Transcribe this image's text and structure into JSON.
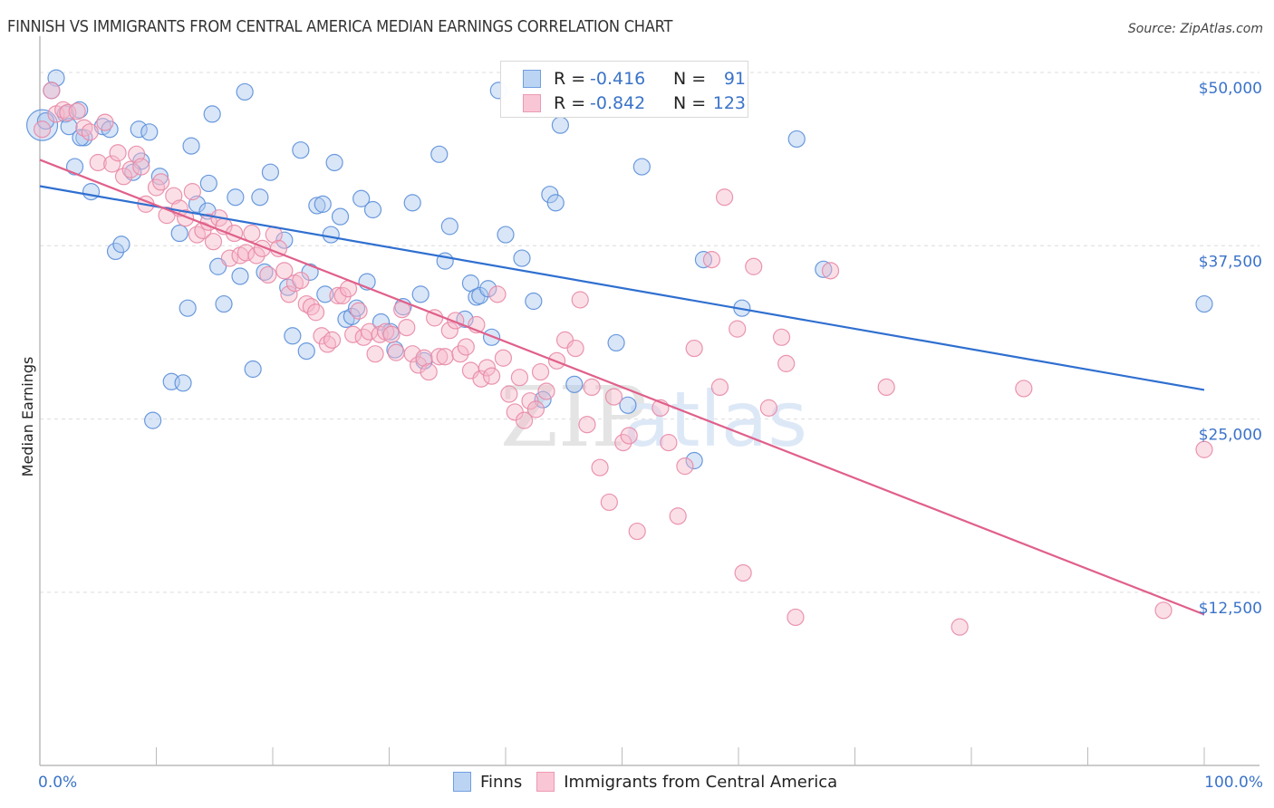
{
  "header": {
    "title": "FINNISH VS IMMIGRANTS FROM CENTRAL AMERICA MEDIAN EARNINGS CORRELATION CHART",
    "source": "Source: ZipAtlas.com"
  },
  "legend": {
    "rows": [
      {
        "r_label": "R =",
        "r_value": "-0.416",
        "n_label": "N =",
        "n_value": "91"
      },
      {
        "r_label": "R =",
        "r_value": "-0.842",
        "n_label": "N =",
        "n_value": "123"
      }
    ],
    "bottom": [
      "Finns",
      "Immigrants from Central America"
    ]
  },
  "watermark": {
    "zip": "ZIP",
    "atlas": "atlas"
  },
  "colors": {
    "finns_fill": "#aac8f0",
    "finns_stroke": "#5b8fd9",
    "finns_line": "#2f6fd0",
    "immig_fill": "#f7b8ca",
    "immig_stroke": "#e88aa6",
    "immig_line": "#e0608a",
    "axis_text": "#3b73c9"
  },
  "chart_data": {
    "type": "scatter",
    "title": "FINNISH VS IMMIGRANTS FROM CENTRAL AMERICA MEDIAN EARNINGS CORRELATION CHART",
    "xlabel": "",
    "ylabel": "Median Earnings",
    "xlim": [
      0,
      100
    ],
    "ylim": [
      0,
      51000
    ],
    "x_tick_labels": [
      "0.0%",
      "100.0%"
    ],
    "y_ticks": [
      12500,
      25000,
      37500,
      50000
    ],
    "y_tick_labels": [
      "$12,500",
      "$25,000",
      "$37,500",
      "$50,000"
    ],
    "grid": true,
    "legend_position": "top-center",
    "series": [
      {
        "name": "Finns",
        "r": -0.416,
        "n": 91,
        "trend": {
          "x": [
            0,
            100
          ],
          "y": [
            41800,
            27100
          ]
        },
        "points": [
          [
            0.2,
            46200
          ],
          [
            1.4,
            49600
          ],
          [
            1.0,
            48700
          ],
          [
            2.2,
            47000
          ],
          [
            2.5,
            46100
          ],
          [
            3.0,
            43200
          ],
          [
            3.8,
            45300
          ],
          [
            3.5,
            45300
          ],
          [
            4.4,
            41400
          ],
          [
            5.4,
            46100
          ],
          [
            6.0,
            45900
          ],
          [
            6.5,
            37100
          ],
          [
            7.0,
            37600
          ],
          [
            8.5,
            45900
          ],
          [
            8.7,
            43600
          ],
          [
            9.4,
            45700
          ],
          [
            9.7,
            24900
          ],
          [
            10.3,
            42500
          ],
          [
            11.3,
            27700
          ],
          [
            12.3,
            27600
          ],
          [
            12.0,
            38400
          ],
          [
            12.7,
            33000
          ],
          [
            13.0,
            44700
          ],
          [
            13.5,
            40500
          ],
          [
            14.4,
            40000
          ],
          [
            14.5,
            42000
          ],
          [
            14.8,
            47000
          ],
          [
            15.3,
            36000
          ],
          [
            15.8,
            33300
          ],
          [
            16.8,
            41000
          ],
          [
            17.2,
            35300
          ],
          [
            17.6,
            48600
          ],
          [
            18.3,
            28600
          ],
          [
            18.9,
            41000
          ],
          [
            19.3,
            35600
          ],
          [
            19.8,
            42800
          ],
          [
            21.0,
            37900
          ],
          [
            21.3,
            34500
          ],
          [
            21.7,
            31000
          ],
          [
            22.4,
            44400
          ],
          [
            22.9,
            29900
          ],
          [
            23.2,
            35600
          ],
          [
            23.8,
            40400
          ],
          [
            24.3,
            40500
          ],
          [
            24.5,
            34000
          ],
          [
            25.0,
            38300
          ],
          [
            25.3,
            43500
          ],
          [
            25.8,
            39600
          ],
          [
            26.3,
            32200
          ],
          [
            26.8,
            32400
          ],
          [
            27.2,
            33000
          ],
          [
            27.6,
            40900
          ],
          [
            28.1,
            34900
          ],
          [
            28.6,
            40100
          ],
          [
            29.3,
            32000
          ],
          [
            30.1,
            31300
          ],
          [
            30.5,
            30000
          ],
          [
            31.2,
            33100
          ],
          [
            32.0,
            40600
          ],
          [
            32.7,
            34000
          ],
          [
            33.0,
            29200
          ],
          [
            34.3,
            44100
          ],
          [
            34.8,
            36400
          ],
          [
            35.2,
            38900
          ],
          [
            36.5,
            32200
          ],
          [
            37.0,
            34800
          ],
          [
            37.5,
            33800
          ],
          [
            37.8,
            33900
          ],
          [
            38.5,
            34400
          ],
          [
            38.8,
            30900
          ],
          [
            39.4,
            48700
          ],
          [
            40.0,
            38300
          ],
          [
            41.4,
            36600
          ],
          [
            42.4,
            33500
          ],
          [
            43.2,
            26400
          ],
          [
            43.8,
            41200
          ],
          [
            44.3,
            40600
          ],
          [
            44.7,
            46200
          ],
          [
            45.9,
            27500
          ],
          [
            49.5,
            30500
          ],
          [
            50.5,
            26000
          ],
          [
            51.7,
            43200
          ],
          [
            56.2,
            22000
          ],
          [
            57.0,
            36500
          ],
          [
            60.3,
            33000
          ],
          [
            65.0,
            45200
          ],
          [
            67.3,
            35800
          ],
          [
            100,
            33300
          ],
          [
            0.5,
            46500
          ],
          [
            3.4,
            47300
          ],
          [
            8.0,
            42800
          ]
        ]
      },
      {
        "name": "Immigrants from Central America",
        "r": -0.842,
        "n": 123,
        "trend": {
          "x": [
            0,
            100
          ],
          "y": [
            43700,
            10900
          ]
        },
        "points": [
          [
            0.2,
            45900
          ],
          [
            1.0,
            48700
          ],
          [
            1.4,
            47000
          ],
          [
            2.0,
            47300
          ],
          [
            2.4,
            47100
          ],
          [
            3.2,
            47200
          ],
          [
            3.8,
            46000
          ],
          [
            4.3,
            45700
          ],
          [
            5.0,
            43500
          ],
          [
            5.6,
            46400
          ],
          [
            6.2,
            43400
          ],
          [
            6.7,
            44200
          ],
          [
            7.2,
            42500
          ],
          [
            7.8,
            43000
          ],
          [
            8.3,
            44100
          ],
          [
            8.7,
            43200
          ],
          [
            9.1,
            40500
          ],
          [
            10.0,
            41700
          ],
          [
            10.4,
            42100
          ],
          [
            10.9,
            39700
          ],
          [
            11.5,
            41100
          ],
          [
            12.0,
            40200
          ],
          [
            12.5,
            39500
          ],
          [
            13.1,
            41400
          ],
          [
            13.5,
            38300
          ],
          [
            14.0,
            38600
          ],
          [
            14.5,
            39200
          ],
          [
            14.9,
            37800
          ],
          [
            15.4,
            39500
          ],
          [
            15.8,
            38900
          ],
          [
            16.3,
            36600
          ],
          [
            16.7,
            38400
          ],
          [
            17.2,
            36800
          ],
          [
            17.7,
            37000
          ],
          [
            18.2,
            38400
          ],
          [
            18.6,
            36800
          ],
          [
            19.1,
            37300
          ],
          [
            19.6,
            35400
          ],
          [
            20.1,
            38300
          ],
          [
            20.5,
            37300
          ],
          [
            21.0,
            35700
          ],
          [
            21.4,
            34000
          ],
          [
            21.9,
            34800
          ],
          [
            22.4,
            35000
          ],
          [
            22.9,
            33300
          ],
          [
            23.3,
            33100
          ],
          [
            23.7,
            32700
          ],
          [
            24.2,
            31000
          ],
          [
            24.7,
            30400
          ],
          [
            25.1,
            30700
          ],
          [
            25.6,
            33900
          ],
          [
            26.0,
            33900
          ],
          [
            26.5,
            34400
          ],
          [
            26.9,
            31100
          ],
          [
            27.4,
            32800
          ],
          [
            27.8,
            30900
          ],
          [
            28.3,
            31300
          ],
          [
            28.8,
            29700
          ],
          [
            29.2,
            31100
          ],
          [
            29.7,
            31300
          ],
          [
            30.2,
            31100
          ],
          [
            30.6,
            29800
          ],
          [
            31.1,
            32900
          ],
          [
            31.5,
            31600
          ],
          [
            32.0,
            29700
          ],
          [
            32.5,
            28900
          ],
          [
            33.0,
            29400
          ],
          [
            33.4,
            28400
          ],
          [
            33.9,
            32300
          ],
          [
            34.3,
            29500
          ],
          [
            34.8,
            29500
          ],
          [
            35.2,
            31400
          ],
          [
            35.7,
            32100
          ],
          [
            36.1,
            29700
          ],
          [
            36.6,
            30200
          ],
          [
            37.0,
            28500
          ],
          [
            37.5,
            31800
          ],
          [
            37.9,
            27900
          ],
          [
            38.4,
            28700
          ],
          [
            38.8,
            28100
          ],
          [
            39.3,
            34000
          ],
          [
            39.8,
            29400
          ],
          [
            40.3,
            26800
          ],
          [
            40.8,
            25500
          ],
          [
            41.2,
            28000
          ],
          [
            41.6,
            24900
          ],
          [
            42.1,
            26300
          ],
          [
            42.6,
            25700
          ],
          [
            43.0,
            28400
          ],
          [
            43.5,
            27000
          ],
          [
            44.4,
            29200
          ],
          [
            45.1,
            30700
          ],
          [
            46.0,
            30100
          ],
          [
            46.4,
            33600
          ],
          [
            47.0,
            24600
          ],
          [
            47.4,
            27300
          ],
          [
            48.1,
            21500
          ],
          [
            48.9,
            19000
          ],
          [
            49.3,
            26600
          ],
          [
            50.1,
            23300
          ],
          [
            50.6,
            23800
          ],
          [
            51.3,
            16900
          ],
          [
            53.3,
            25800
          ],
          [
            54.0,
            23300
          ],
          [
            54.8,
            18000
          ],
          [
            55.4,
            21600
          ],
          [
            56.2,
            30100
          ],
          [
            57.7,
            36500
          ],
          [
            58.4,
            27300
          ],
          [
            58.8,
            41000
          ],
          [
            60.4,
            13900
          ],
          [
            61.3,
            36000
          ],
          [
            62.6,
            25800
          ],
          [
            63.7,
            30900
          ],
          [
            64.1,
            29000
          ],
          [
            64.9,
            10700
          ],
          [
            67.9,
            35700
          ],
          [
            72.7,
            27300
          ],
          [
            79.0,
            10000
          ],
          [
            84.5,
            27200
          ],
          [
            96.5,
            11200
          ],
          [
            100,
            22800
          ],
          [
            59.9,
            31500
          ]
        ]
      }
    ]
  }
}
